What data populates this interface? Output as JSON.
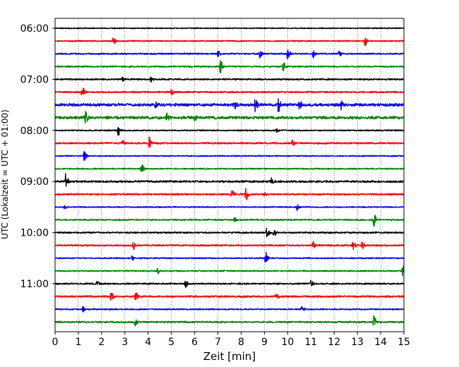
{
  "chart_data": {
    "type": "line",
    "title": "",
    "xlabel": "Zeit  [min]",
    "ylabel": "UTC (Lokalzeit = UTC + 01:00)",
    "xlim": [
      0,
      15
    ],
    "x_ticks": [
      "0",
      "1",
      "2",
      "3",
      "4",
      "5",
      "6",
      "7",
      "8",
      "9",
      "10",
      "11",
      "12",
      "13",
      "14",
      "15"
    ],
    "y_ticks": [
      "06:00",
      "07:00",
      "08:00",
      "09:00",
      "10:00",
      "11:00"
    ],
    "grid": "vertical dotted",
    "trace_interval_minutes": 15,
    "start_time": "06:00",
    "end_time": "12:00",
    "trace_colors": [
      "#000000",
      "#ff0000",
      "#0000ff",
      "#008000"
    ],
    "series": [
      {
        "label": "06:00",
        "color": "#000000",
        "noise": 0.8,
        "events": []
      },
      {
        "label": "06:15",
        "color": "#ff0000",
        "noise": 1.0,
        "events": [
          {
            "t": 2.5,
            "amp": 5
          },
          {
            "t": 13.3,
            "amp": 9
          }
        ]
      },
      {
        "label": "06:30",
        "color": "#0000ff",
        "noise": 1.2,
        "events": [
          {
            "t": 7.0,
            "amp": 4
          },
          {
            "t": 8.8,
            "amp": 5
          },
          {
            "t": 10.0,
            "amp": 8
          },
          {
            "t": 11.1,
            "amp": 5
          },
          {
            "t": 12.2,
            "amp": 4
          }
        ]
      },
      {
        "label": "06:45",
        "color": "#008000",
        "noise": 1.1,
        "events": [
          {
            "t": 7.1,
            "amp": 9
          },
          {
            "t": 9.8,
            "amp": 7
          }
        ]
      },
      {
        "label": "07:00",
        "color": "#000000",
        "noise": 1.2,
        "events": [
          {
            "t": 2.9,
            "amp": 3
          },
          {
            "t": 4.1,
            "amp": 5
          }
        ]
      },
      {
        "label": "07:15",
        "color": "#ff0000",
        "noise": 1.2,
        "events": [
          {
            "t": 1.15,
            "amp": 9
          },
          {
            "t": 5.0,
            "amp": 3
          }
        ]
      },
      {
        "label": "07:30",
        "color": "#0000ff",
        "noise": 2.2,
        "events": [
          {
            "t": 4.3,
            "amp": 4
          },
          {
            "t": 7.7,
            "amp": 7
          },
          {
            "t": 8.6,
            "amp": 9
          },
          {
            "t": 9.6,
            "amp": 11
          },
          {
            "t": 10.5,
            "amp": 6
          },
          {
            "t": 12.3,
            "amp": 6
          }
        ]
      },
      {
        "label": "07:45",
        "color": "#008000",
        "noise": 2.2,
        "events": [
          {
            "t": 1.3,
            "amp": 8
          },
          {
            "t": 4.8,
            "amp": 6
          },
          {
            "t": 6.0,
            "amp": 4
          }
        ]
      },
      {
        "label": "08:00",
        "color": "#000000",
        "noise": 1.0,
        "events": [
          {
            "t": 2.7,
            "amp": 8
          },
          {
            "t": 9.5,
            "amp": 3
          }
        ]
      },
      {
        "label": "08:15",
        "color": "#ff0000",
        "noise": 1.3,
        "events": [
          {
            "t": 2.9,
            "amp": 4
          },
          {
            "t": 4.05,
            "amp": 10
          },
          {
            "t": 10.2,
            "amp": 4
          }
        ]
      },
      {
        "label": "08:30",
        "color": "#0000ff",
        "noise": 0.9,
        "events": [
          {
            "t": 1.25,
            "amp": 8
          }
        ]
      },
      {
        "label": "08:45",
        "color": "#008000",
        "noise": 1.0,
        "events": [
          {
            "t": 3.7,
            "amp": 8
          }
        ]
      },
      {
        "label": "09:00",
        "color": "#000000",
        "noise": 1.6,
        "events": [
          {
            "t": 0.45,
            "amp": 10
          },
          {
            "t": 9.3,
            "amp": 5
          }
        ]
      },
      {
        "label": "09:15",
        "color": "#ff0000",
        "noise": 1.3,
        "events": [
          {
            "t": 7.6,
            "amp": 5
          },
          {
            "t": 8.2,
            "amp": 8
          },
          {
            "t": 9.0,
            "amp": 3
          }
        ]
      },
      {
        "label": "09:30",
        "color": "#0000ff",
        "noise": 0.9,
        "events": [
          {
            "t": 0.4,
            "amp": 3
          },
          {
            "t": 10.4,
            "amp": 4
          }
        ]
      },
      {
        "label": "09:45",
        "color": "#008000",
        "noise": 1.1,
        "events": [
          {
            "t": 7.7,
            "amp": 3
          },
          {
            "t": 13.7,
            "amp": 11
          }
        ]
      },
      {
        "label": "10:00",
        "color": "#000000",
        "noise": 1.2,
        "events": [
          {
            "t": 9.1,
            "amp": 7
          },
          {
            "t": 9.4,
            "amp": 5
          }
        ]
      },
      {
        "label": "10:15",
        "color": "#ff0000",
        "noise": 1.3,
        "events": [
          {
            "t": 3.35,
            "amp": 7
          },
          {
            "t": 11.1,
            "amp": 5
          },
          {
            "t": 12.8,
            "amp": 8
          },
          {
            "t": 13.2,
            "amp": 5
          }
        ]
      },
      {
        "label": "10:30",
        "color": "#0000ff",
        "noise": 1.0,
        "events": [
          {
            "t": 3.3,
            "amp": 3
          },
          {
            "t": 9.05,
            "amp": 10
          }
        ]
      },
      {
        "label": "10:45",
        "color": "#008000",
        "noise": 1.0,
        "events": [
          {
            "t": 4.4,
            "amp": 4
          },
          {
            "t": 14.95,
            "amp": 9
          }
        ]
      },
      {
        "label": "11:00",
        "color": "#000000",
        "noise": 1.2,
        "events": [
          {
            "t": 1.8,
            "amp": 3
          },
          {
            "t": 5.6,
            "amp": 5
          },
          {
            "t": 11.0,
            "amp": 4
          }
        ]
      },
      {
        "label": "11:15",
        "color": "#ff0000",
        "noise": 1.4,
        "events": [
          {
            "t": 2.4,
            "amp": 5
          },
          {
            "t": 3.45,
            "amp": 7
          },
          {
            "t": 9.5,
            "amp": 4
          }
        ]
      },
      {
        "label": "11:30",
        "color": "#0000ff",
        "noise": 1.0,
        "events": [
          {
            "t": 1.2,
            "amp": 4
          },
          {
            "t": 10.6,
            "amp": 4
          }
        ]
      },
      {
        "label": "11:45",
        "color": "#008000",
        "noise": 1.3,
        "events": [
          {
            "t": 3.45,
            "amp": 6
          },
          {
            "t": 13.7,
            "amp": 8
          }
        ]
      }
    ]
  }
}
